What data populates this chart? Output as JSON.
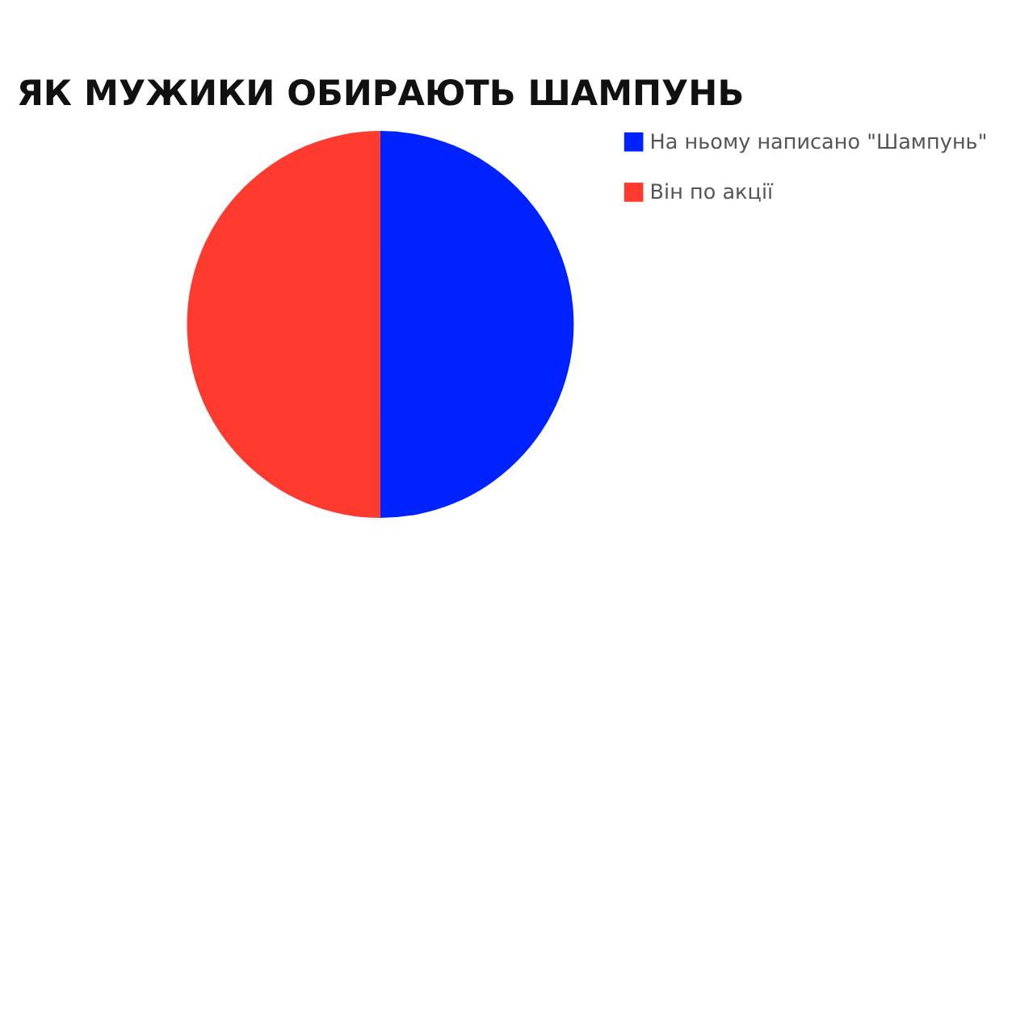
{
  "chart_data": {
    "type": "pie",
    "title": "ЯК МУЖИКИ ОБИРАЮТЬ ШАМПУНЬ",
    "categories": [
      "На ньому написано \"Шампунь\"",
      "Він по акції"
    ],
    "values": [
      50,
      50
    ],
    "colors": [
      "#0022ff",
      "#ff3b30"
    ],
    "legend": "top right"
  }
}
